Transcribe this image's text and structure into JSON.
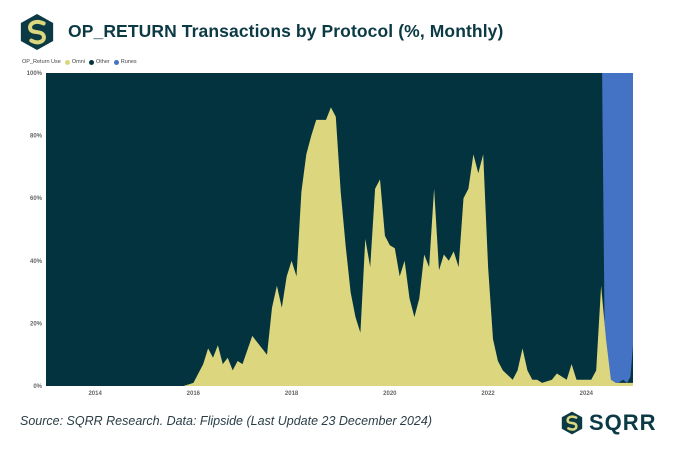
{
  "title": "OP_RETURN Transactions by Protocol (%, Monthly)",
  "source": "Source: SQRR Research. Data: Flipside (Last Update 23 December 2024)",
  "brand": "SQRR",
  "colors": {
    "background": "#043340",
    "omni": "#dcd77f",
    "other": "#043340",
    "runes": "#4472c4",
    "brand": "#0c3a44"
  },
  "chart_data": {
    "type": "area",
    "title": "OP_RETURN Transactions by Protocol (%, Monthly)",
    "stacked": true,
    "legend_title": "OP_Return Use",
    "legend": [
      "Omni",
      "Other",
      "Runes"
    ],
    "x_start": 2013.0,
    "x_end": 2024.95,
    "xticks": [
      "2014",
      "2016",
      "2018",
      "2020",
      "2022",
      "2024"
    ],
    "yticks": [
      "0%",
      "20%",
      "40%",
      "60%",
      "80%",
      "100%"
    ],
    "ylim": [
      0,
      100
    ],
    "grid": false,
    "series": [
      {
        "name": "Omni",
        "points": [
          [
            2013.0,
            0
          ],
          [
            2015.8,
            0
          ],
          [
            2016.0,
            1
          ],
          [
            2016.2,
            7
          ],
          [
            2016.3,
            12
          ],
          [
            2016.4,
            9
          ],
          [
            2016.5,
            13
          ],
          [
            2016.6,
            7
          ],
          [
            2016.7,
            9
          ],
          [
            2016.8,
            5
          ],
          [
            2016.9,
            8
          ],
          [
            2017.0,
            7
          ],
          [
            2017.2,
            16
          ],
          [
            2017.3,
            14
          ],
          [
            2017.5,
            10
          ],
          [
            2017.6,
            25
          ],
          [
            2017.7,
            32
          ],
          [
            2017.8,
            25
          ],
          [
            2017.9,
            35
          ],
          [
            2018.0,
            40
          ],
          [
            2018.1,
            35
          ],
          [
            2018.2,
            62
          ],
          [
            2018.3,
            74
          ],
          [
            2018.4,
            80
          ],
          [
            2018.5,
            85
          ],
          [
            2018.7,
            85
          ],
          [
            2018.8,
            89
          ],
          [
            2018.9,
            86
          ],
          [
            2019.0,
            62
          ],
          [
            2019.1,
            45
          ],
          [
            2019.2,
            30
          ],
          [
            2019.3,
            22
          ],
          [
            2019.4,
            17
          ],
          [
            2019.5,
            47
          ],
          [
            2019.6,
            38
          ],
          [
            2019.7,
            63
          ],
          [
            2019.8,
            66
          ],
          [
            2019.9,
            48
          ],
          [
            2020.0,
            45
          ],
          [
            2020.1,
            44
          ],
          [
            2020.2,
            35
          ],
          [
            2020.3,
            40
          ],
          [
            2020.4,
            28
          ],
          [
            2020.5,
            22
          ],
          [
            2020.6,
            28
          ],
          [
            2020.7,
            42
          ],
          [
            2020.8,
            38
          ],
          [
            2020.9,
            63
          ],
          [
            2021.0,
            37
          ],
          [
            2021.1,
            42
          ],
          [
            2021.2,
            40
          ],
          [
            2021.3,
            43
          ],
          [
            2021.4,
            38
          ],
          [
            2021.5,
            60
          ],
          [
            2021.6,
            63
          ],
          [
            2021.7,
            74
          ],
          [
            2021.8,
            68
          ],
          [
            2021.9,
            74
          ],
          [
            2022.0,
            38
          ],
          [
            2022.1,
            15
          ],
          [
            2022.2,
            8
          ],
          [
            2022.3,
            5
          ],
          [
            2022.5,
            2
          ],
          [
            2022.6,
            5
          ],
          [
            2022.7,
            12
          ],
          [
            2022.8,
            5
          ],
          [
            2022.9,
            2
          ],
          [
            2023.0,
            2
          ],
          [
            2023.1,
            1
          ],
          [
            2023.3,
            2
          ],
          [
            2023.4,
            4
          ],
          [
            2023.5,
            3
          ],
          [
            2023.6,
            2
          ],
          [
            2023.7,
            7
          ],
          [
            2023.8,
            2
          ],
          [
            2024.1,
            2
          ],
          [
            2024.2,
            5
          ],
          [
            2024.3,
            32
          ],
          [
            2024.4,
            15
          ],
          [
            2024.5,
            2
          ],
          [
            2024.6,
            1
          ],
          [
            2024.8,
            1
          ],
          [
            2024.95,
            1
          ]
        ]
      },
      {
        "name": "Runes",
        "points": [
          [
            2013.0,
            0
          ],
          [
            2024.32,
            0
          ],
          [
            2024.35,
            100
          ],
          [
            2024.95,
            100
          ]
        ]
      },
      {
        "name": "Other",
        "note": "remainder to 100%",
        "boundary_points": [
          [
            2024.32,
            100
          ],
          [
            2024.38,
            5
          ],
          [
            2024.45,
            2
          ],
          [
            2024.55,
            1
          ],
          [
            2024.65,
            1
          ],
          [
            2024.75,
            2
          ],
          [
            2024.83,
            1
          ],
          [
            2024.9,
            3
          ],
          [
            2024.95,
            13
          ]
        ]
      }
    ]
  }
}
